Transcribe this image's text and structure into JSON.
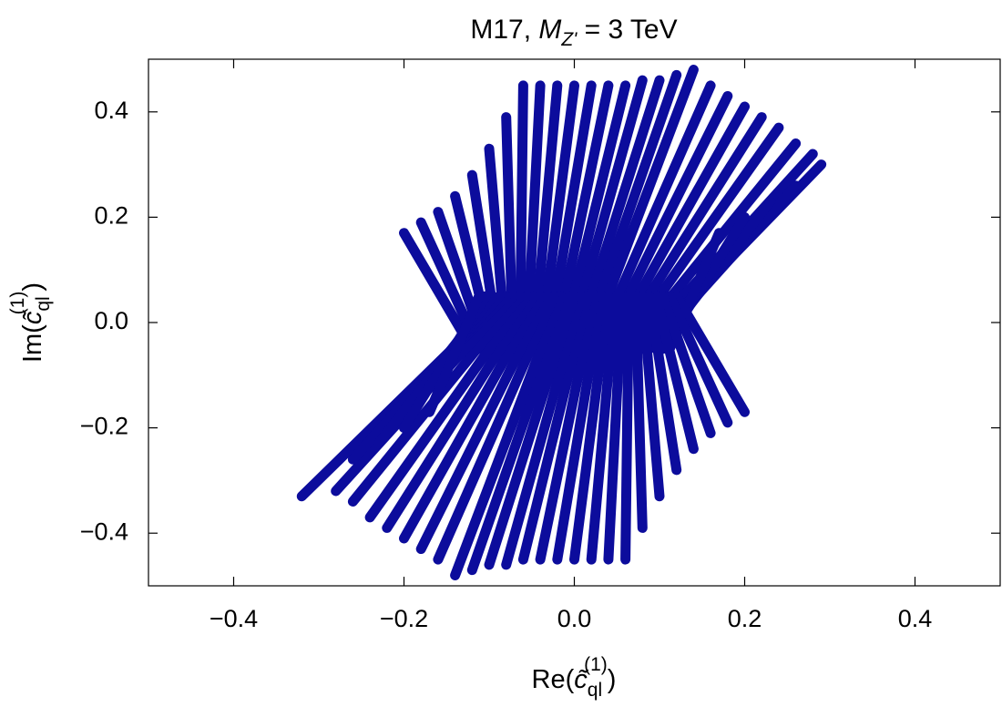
{
  "chart_data": {
    "type": "line",
    "title": {
      "prefix": "M17, ",
      "symbol": "M",
      "subscript": "Z'",
      "suffix": " = 3 TeV"
    },
    "x_label": {
      "prefix": "Re(",
      "symbol": "c̃",
      "subscript": "ql",
      "superscript": "(1)",
      "suffix": ")"
    },
    "y_label": {
      "prefix": "Im(",
      "symbol": "c̃",
      "subscript": "ql",
      "superscript": "(1)",
      "suffix": ")"
    },
    "color": "#0c0c9c",
    "xlim": [
      -0.5,
      0.5
    ],
    "ylim": [
      -0.5,
      0.5
    ],
    "xticks": [
      {
        "value": -0.4,
        "label": "−0.4"
      },
      {
        "value": -0.2,
        "label": "−0.2"
      },
      {
        "value": 0,
        "label": "0.0"
      },
      {
        "value": 0.2,
        "label": "0.2"
      },
      {
        "value": 0.4,
        "label": "0.4"
      }
    ],
    "yticks": [
      {
        "value": -0.4,
        "label": "−0.4"
      },
      {
        "value": -0.2,
        "label": "−0.2"
      },
      {
        "value": 0,
        "label": "0.0"
      },
      {
        "value": 0.2,
        "label": "0.2"
      },
      {
        "value": 0.4,
        "label": "0.4"
      }
    ],
    "series": [
      {
        "x": [
          -0.12,
          -0.2
        ],
        "values": [
          -0.05,
          0.17
        ]
      },
      {
        "x": [
          -0.112,
          -0.18
        ],
        "values": [
          -0.05,
          0.19
        ]
      },
      {
        "x": [
          -0.104,
          -0.16
        ],
        "values": [
          -0.05,
          0.21
        ]
      },
      {
        "x": [
          -0.096,
          -0.14
        ],
        "values": [
          -0.05,
          0.24
        ]
      },
      {
        "x": [
          -0.088,
          -0.12
        ],
        "values": [
          -0.05,
          0.28
        ]
      },
      {
        "x": [
          -0.08,
          -0.1
        ],
        "values": [
          -0.05,
          0.33
        ]
      },
      {
        "x": [
          -0.072,
          -0.08
        ],
        "values": [
          -0.05,
          0.39
        ]
      },
      {
        "x": [
          -0.064,
          -0.06
        ],
        "values": [
          -0.05,
          0.45
        ]
      },
      {
        "x": [
          -0.056,
          -0.04
        ],
        "values": [
          -0.05,
          0.45
        ]
      },
      {
        "x": [
          -0.048,
          -0.02
        ],
        "values": [
          -0.05,
          0.45
        ]
      },
      {
        "x": [
          -0.04,
          0
        ],
        "values": [
          -0.05,
          0.45
        ]
      },
      {
        "x": [
          -0.032,
          0.02
        ],
        "values": [
          -0.05,
          0.45
        ]
      },
      {
        "x": [
          -0.024,
          0.04
        ],
        "values": [
          -0.05,
          0.45
        ]
      },
      {
        "x": [
          -0.016,
          0.06
        ],
        "values": [
          -0.05,
          0.45
        ]
      },
      {
        "x": [
          -0.008,
          0.08
        ],
        "values": [
          -0.05,
          0.46
        ]
      },
      {
        "x": [
          0,
          0.1
        ],
        "values": [
          -0.05,
          0.46
        ]
      },
      {
        "x": [
          0.008,
          0.12
        ],
        "values": [
          -0.05,
          0.47
        ]
      },
      {
        "x": [
          0.016,
          0.14
        ],
        "values": [
          -0.05,
          0.48
        ]
      },
      {
        "x": [
          0.024,
          0.16
        ],
        "values": [
          -0.05,
          0.45
        ]
      },
      {
        "x": [
          0.032,
          0.18
        ],
        "values": [
          -0.05,
          0.43
        ]
      },
      {
        "x": [
          0.04,
          0.2
        ],
        "values": [
          -0.05,
          0.41
        ]
      },
      {
        "x": [
          0.048,
          0.22
        ],
        "values": [
          -0.05,
          0.39
        ]
      },
      {
        "x": [
          0.056,
          0.24
        ],
        "values": [
          -0.05,
          0.37
        ]
      },
      {
        "x": [
          0.064,
          0.26
        ],
        "values": [
          -0.05,
          0.34
        ]
      },
      {
        "x": [
          0.072,
          0.28
        ],
        "values": [
          -0.05,
          0.32
        ]
      },
      {
        "x": [
          0.08,
          0.29
        ],
        "values": [
          -0.05,
          0.3
        ]
      },
      {
        "x": [
          0.088,
          0.26
        ],
        "values": [
          -0.05,
          0.26
        ]
      },
      {
        "x": [
          0.096,
          0.23
        ],
        "values": [
          -0.05,
          0.23
        ]
      },
      {
        "x": [
          0.104,
          0.2
        ],
        "values": [
          -0.05,
          0.2
        ]
      },
      {
        "x": [
          0.112,
          0.17
        ],
        "values": [
          -0.05,
          0.17
        ]
      },
      {
        "x": [
          0.12,
          0.2
        ],
        "values": [
          0.05,
          -0.17
        ]
      },
      {
        "x": [
          0.112,
          0.18
        ],
        "values": [
          0.05,
          -0.19
        ]
      },
      {
        "x": [
          0.104,
          0.16
        ],
        "values": [
          0.05,
          -0.21
        ]
      },
      {
        "x": [
          0.096,
          0.14
        ],
        "values": [
          0.05,
          -0.24
        ]
      },
      {
        "x": [
          0.088,
          0.12
        ],
        "values": [
          0.05,
          -0.28
        ]
      },
      {
        "x": [
          0.08,
          0.1
        ],
        "values": [
          0.05,
          -0.33
        ]
      },
      {
        "x": [
          0.072,
          0.08
        ],
        "values": [
          0.05,
          -0.39
        ]
      },
      {
        "x": [
          0.064,
          0.06
        ],
        "values": [
          0.05,
          -0.45
        ]
      },
      {
        "x": [
          0.056,
          0.04
        ],
        "values": [
          0.05,
          -0.45
        ]
      },
      {
        "x": [
          0.048,
          0.02
        ],
        "values": [
          0.05,
          -0.45
        ]
      },
      {
        "x": [
          0.04,
          0
        ],
        "values": [
          0.05,
          -0.45
        ]
      },
      {
        "x": [
          0.032,
          -0.02
        ],
        "values": [
          0.05,
          -0.45
        ]
      },
      {
        "x": [
          0.024,
          -0.04
        ],
        "values": [
          0.05,
          -0.45
        ]
      },
      {
        "x": [
          0.016,
          -0.06
        ],
        "values": [
          0.05,
          -0.45
        ]
      },
      {
        "x": [
          0.008,
          -0.08
        ],
        "values": [
          0.05,
          -0.46
        ]
      },
      {
        "x": [
          0,
          -0.1
        ],
        "values": [
          0.05,
          -0.46
        ]
      },
      {
        "x": [
          -0.008,
          -0.12
        ],
        "values": [
          0.05,
          -0.47
        ]
      },
      {
        "x": [
          -0.016,
          -0.14
        ],
        "values": [
          0.05,
          -0.48
        ]
      },
      {
        "x": [
          -0.024,
          -0.16
        ],
        "values": [
          0.05,
          -0.45
        ]
      },
      {
        "x": [
          -0.032,
          -0.18
        ],
        "values": [
          0.05,
          -0.43
        ]
      },
      {
        "x": [
          -0.04,
          -0.2
        ],
        "values": [
          0.05,
          -0.41
        ]
      },
      {
        "x": [
          -0.048,
          -0.22
        ],
        "values": [
          0.05,
          -0.39
        ]
      },
      {
        "x": [
          -0.056,
          -0.24
        ],
        "values": [
          0.05,
          -0.37
        ]
      },
      {
        "x": [
          -0.064,
          -0.26
        ],
        "values": [
          0.05,
          -0.34
        ]
      },
      {
        "x": [
          -0.072,
          -0.28
        ],
        "values": [
          0.05,
          -0.32
        ]
      },
      {
        "x": [
          -0.08,
          -0.32
        ],
        "values": [
          0.05,
          -0.33
        ]
      },
      {
        "x": [
          -0.088,
          -0.26
        ],
        "values": [
          0.05,
          -0.26
        ]
      },
      {
        "x": [
          -0.096,
          -0.23
        ],
        "values": [
          0.05,
          -0.23
        ]
      },
      {
        "x": [
          -0.104,
          -0.2
        ],
        "values": [
          0.05,
          -0.2
        ]
      },
      {
        "x": [
          -0.112,
          -0.17
        ],
        "values": [
          0.05,
          -0.17
        ]
      }
    ]
  }
}
